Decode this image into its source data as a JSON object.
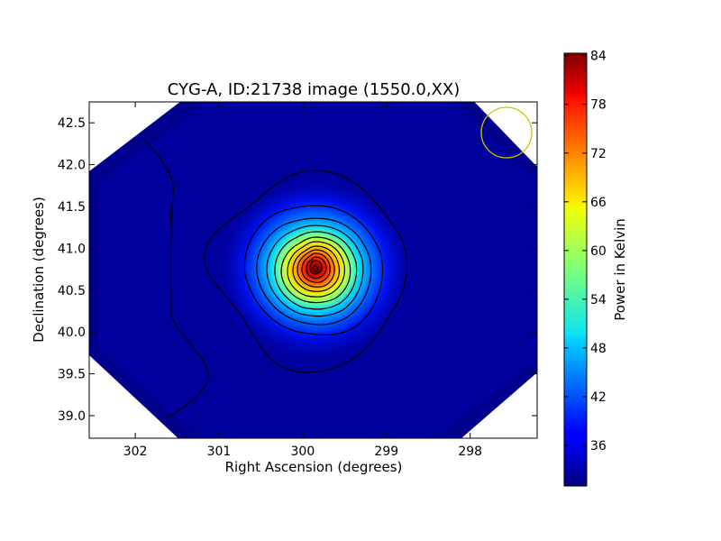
{
  "chart_data": {
    "type": "heatmap",
    "title": "CYG-A, ID:21738 image (1550.0,XX)",
    "xlabel": "Right Ascension (degrees)",
    "ylabel": "Declination (degrees)",
    "xlim": [
      302.55,
      297.2
    ],
    "ylim": [
      38.73,
      42.75
    ],
    "x_ticks": [
      "302",
      "301",
      "300",
      "299",
      "298"
    ],
    "x_tick_values": [
      302,
      301,
      300,
      299,
      298
    ],
    "y_ticks": [
      "39.0",
      "39.5",
      "40.0",
      "40.5",
      "41.0",
      "41.5",
      "42.0",
      "42.5"
    ],
    "y_tick_values": [
      39.0,
      39.5,
      40.0,
      40.5,
      41.0,
      41.5,
      42.0,
      42.5
    ],
    "colormap": "jet",
    "colorbar": {
      "label": "Power in Kelvin",
      "range": [
        31,
        84.3
      ],
      "ticks": [
        "36",
        "42",
        "48",
        "54",
        "60",
        "66",
        "72",
        "78",
        "84"
      ],
      "tick_values": [
        36,
        42,
        48,
        54,
        60,
        66,
        72,
        78,
        84
      ]
    },
    "source": {
      "ra": 299.85,
      "dec": 40.74,
      "peak_kelvin": 84,
      "background_kelvin": 31
    },
    "beam_marker": {
      "ra": 297.55,
      "dec": 42.36,
      "color": "#c8c800"
    },
    "contours": "black"
  }
}
